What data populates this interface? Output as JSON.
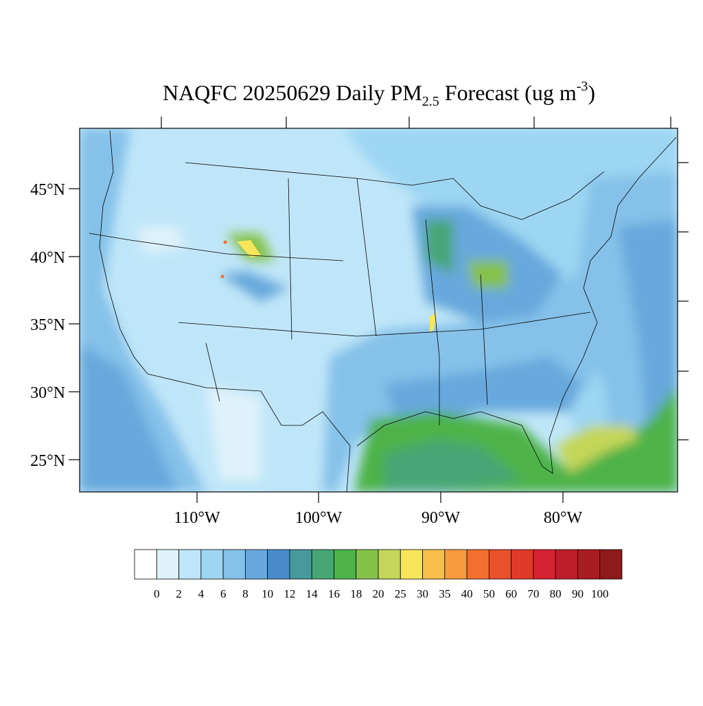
{
  "title": {
    "main": "NAQFC 20250629 Daily PM",
    "sub": "2.5",
    "mid": " Forecast (ug m",
    "sup": "-3",
    "end": ")"
  },
  "lat_labels": [
    "45°N",
    "40°N",
    "35°N",
    "30°N",
    "25°N"
  ],
  "lon_labels": [
    "110°W",
    "100°W",
    "90°W",
    "80°W"
  ],
  "colorbar": {
    "labels": [
      0,
      2,
      4,
      6,
      8,
      10,
      12,
      14,
      16,
      18,
      20,
      25,
      30,
      35,
      40,
      50,
      60,
      70,
      80,
      90,
      100
    ],
    "colors": [
      "#ffffff",
      "#dff2fb",
      "#bfe6f8",
      "#9dd6f3",
      "#85c1e9",
      "#68a8dc",
      "#4a8ccb",
      "#47999c",
      "#46a674",
      "#4db34a",
      "#86c24a",
      "#c4d659",
      "#f8e65a",
      "#f9bf4b",
      "#f89a3f",
      "#f46f2e",
      "#e9512b",
      "#df3a2a",
      "#d62230",
      "#bd1e2a",
      "#a81c22",
      "#8f1a1c"
    ]
  }
}
